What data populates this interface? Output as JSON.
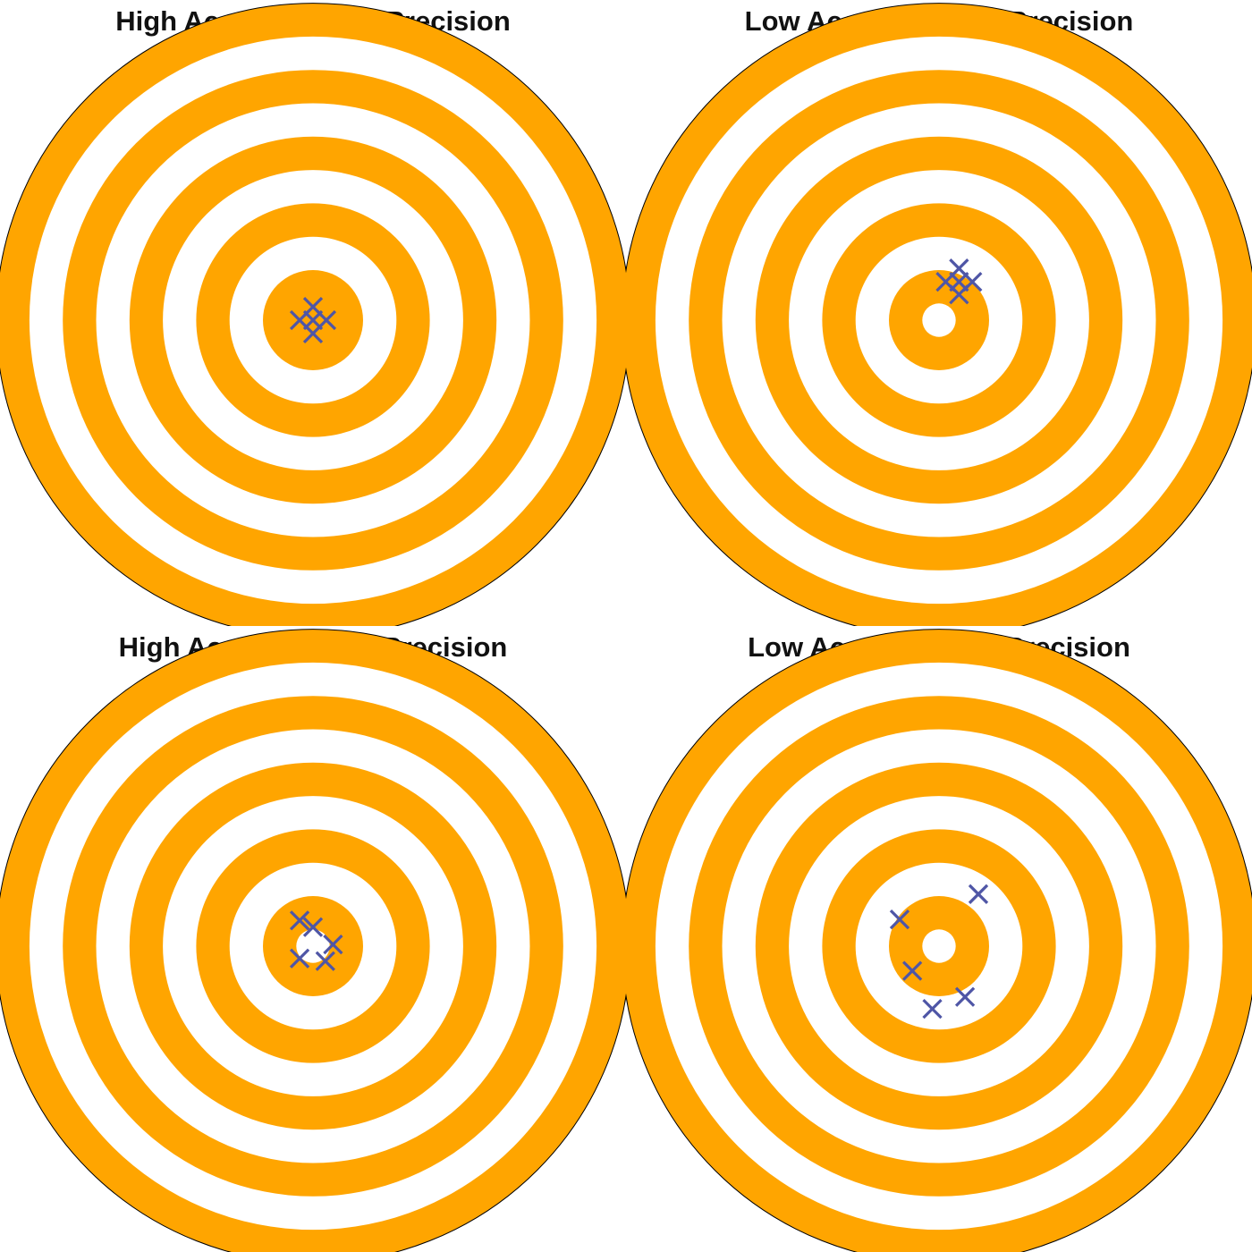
{
  "colors": {
    "ring": "#FFA500",
    "gap": "#FFFFFF",
    "outline": "#000000",
    "marker": "#4F56A6"
  },
  "targets": [
    {
      "title": "High Accuracy High Precision",
      "rings": 5,
      "bullseye_filled": true,
      "hits": [
        [
          0,
          0.4
        ],
        [
          -0.4,
          0
        ],
        [
          0,
          0
        ],
        [
          0.4,
          0
        ],
        [
          0,
          -0.4
        ]
      ]
    },
    {
      "title": "Low Accuracy High Precision",
      "rings": 5,
      "bullseye_filled": false,
      "hits": [
        [
          0.6,
          1.55
        ],
        [
          0.2,
          1.15
        ],
        [
          0.6,
          1.15
        ],
        [
          1.0,
          1.15
        ],
        [
          0.6,
          0.77
        ]
      ]
    },
    {
      "title": "High Accuracy Low Precision",
      "rings": 5,
      "bullseye_filled": false,
      "hits": [
        [
          -0.4,
          0.77
        ],
        [
          0,
          0.57
        ],
        [
          0.6,
          0.05
        ],
        [
          -0.4,
          -0.37
        ],
        [
          0.37,
          -0.45
        ]
      ]
    },
    {
      "title": "Low Accuracy Low Precision",
      "rings": 5,
      "bullseye_filled": false,
      "hits": [
        [
          1.18,
          1.56
        ],
        [
          -1.18,
          0.8
        ],
        [
          -0.8,
          -0.74
        ],
        [
          0.78,
          -1.52
        ],
        [
          -0.2,
          -1.88
        ]
      ]
    }
  ]
}
